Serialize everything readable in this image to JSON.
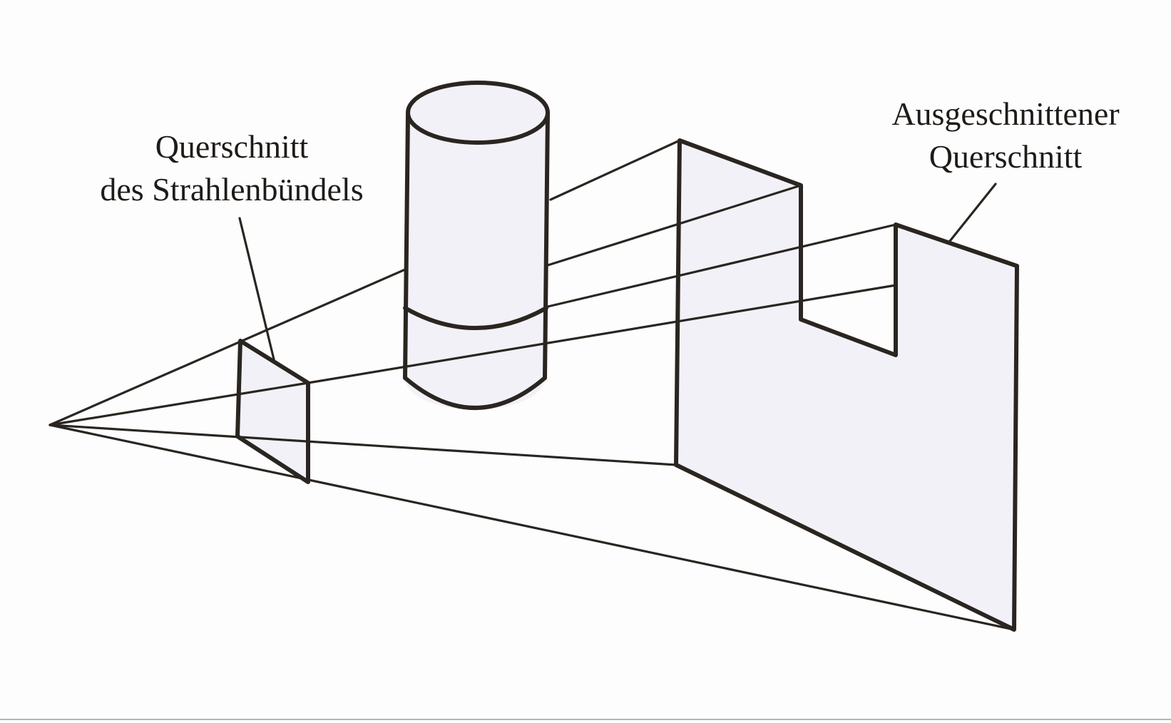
{
  "labels": {
    "beam_cross_section": {
      "line1": "Querschnitt",
      "line2": "des Strahlenbündels"
    },
    "cut_cross_section": {
      "line1": "Ausgeschnittener",
      "line2": "Querschnitt"
    }
  },
  "colors": {
    "line": "#2a2520",
    "surface": "#f2f1f7"
  }
}
